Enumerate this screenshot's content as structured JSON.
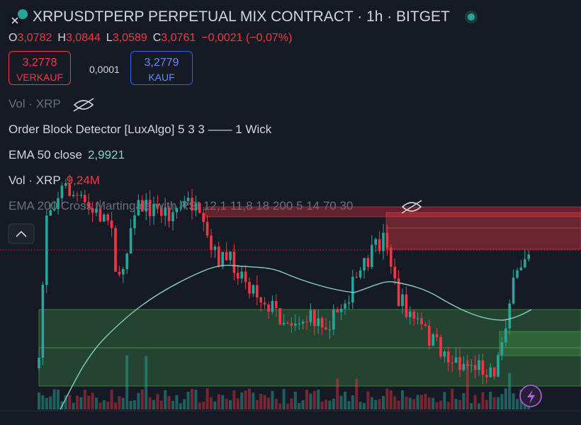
{
  "header": {
    "title": "XRPUSDTPERP PERPETUAL MIX CONTRACT · 1h · BITGET"
  },
  "ohlc": [
    {
      "label": "O",
      "value": "3,0782"
    },
    {
      "label": "H",
      "value": "3,0844"
    },
    {
      "label": "L",
      "value": "3,0589"
    },
    {
      "label": "C",
      "value": "3,0761"
    }
  ],
  "change": "−0,0021 (−0,07%)",
  "sell": {
    "price": "3,2778",
    "label": "VERKAUF"
  },
  "spread": "0,0001",
  "buy": {
    "price": "3,2779",
    "label": "KAUF"
  },
  "indicators": [
    {
      "name": "Vol · XRP"
    },
    {
      "name": "Order Block Detector [LuxAlgo] 5 3 3 —— 1 Wick"
    },
    {
      "name": "EMA 50 close",
      "value": "2,9921"
    },
    {
      "name": "Vol · XRP",
      "value": "9,24M"
    },
    {
      "name": "EMA 200 Cross Martingale with RSI 12,1 11,8 18 200 5 14 70 30"
    }
  ]
}
